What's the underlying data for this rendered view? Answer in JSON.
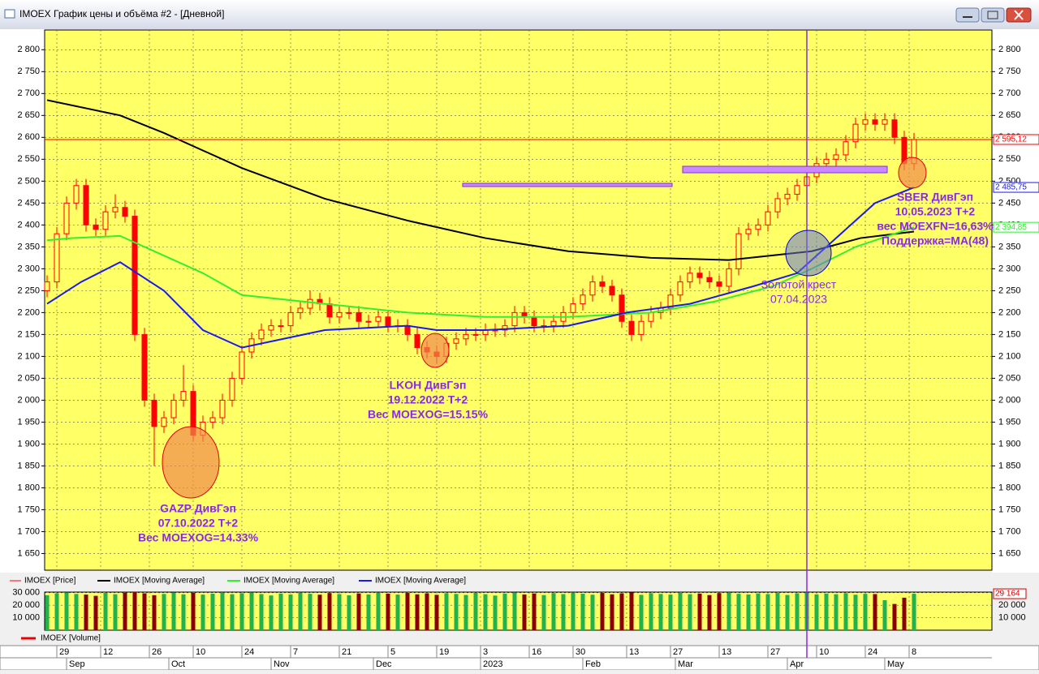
{
  "window": {
    "title": "IMOEX График цены и объёма #2 - [Дневной]"
  },
  "chart_data": {
    "type": "candlestick",
    "x": [
      0,
      2,
      4,
      6,
      8,
      10,
      12,
      14,
      16,
      18,
      20,
      22,
      24,
      26,
      28,
      30,
      32,
      34,
      36,
      38,
      40,
      42,
      44,
      46,
      48,
      50,
      52,
      54,
      56,
      58,
      60,
      62,
      64,
      66,
      68,
      70,
      72,
      74,
      76,
      78,
      80,
      82,
      84,
      86,
      88,
      90,
      92,
      94,
      96,
      98,
      100,
      102,
      104,
      106,
      108,
      110,
      112,
      114,
      116,
      118,
      120,
      122,
      124,
      126,
      128,
      130,
      132,
      134,
      136,
      138,
      140,
      142,
      144,
      146,
      148,
      150,
      152,
      154,
      156,
      158,
      160,
      162,
      164,
      166,
      168,
      170,
      172,
      174,
      176,
      178
    ],
    "open": [
      2250,
      2270,
      2380,
      2450,
      2490,
      2400,
      2390,
      2430,
      2440,
      2420,
      2150,
      2000,
      1940,
      1960,
      2000,
      2020,
      1920,
      1950,
      1960,
      2000,
      2050,
      2110,
      2140,
      2160,
      2170,
      2170,
      2200,
      2210,
      2230,
      2220,
      2190,
      2200,
      2200,
      2180,
      2180,
      2190,
      2170,
      2170,
      2150,
      2120,
      2110,
      2100,
      2130,
      2140,
      2150,
      2150,
      2160,
      2160,
      2170,
      2200,
      2190,
      2170,
      2170,
      2180,
      2200,
      2220,
      2240,
      2270,
      2260,
      2240,
      2180,
      2150,
      2180,
      2200,
      2210,
      2240,
      2270,
      2290,
      2280,
      2270,
      2260,
      2300,
      2380,
      2390,
      2400,
      2430,
      2460,
      2470,
      2490,
      2510,
      2540,
      2550,
      2560,
      2590,
      2630,
      2640,
      2630,
      2640,
      2600,
      2540
    ],
    "high": [
      2285,
      2395,
      2465,
      2505,
      2505,
      2415,
      2445,
      2470,
      2455,
      2435,
      2165,
      2015,
      1975,
      2015,
      2080,
      2035,
      1965,
      1975,
      2015,
      2065,
      2125,
      2155,
      2175,
      2185,
      2185,
      2215,
      2225,
      2250,
      2245,
      2235,
      2215,
      2215,
      2215,
      2195,
      2205,
      2205,
      2185,
      2185,
      2165,
      2135,
      2125,
      2145,
      2155,
      2165,
      2165,
      2175,
      2175,
      2185,
      2215,
      2215,
      2205,
      2185,
      2195,
      2215,
      2235,
      2255,
      2285,
      2285,
      2275,
      2255,
      2195,
      2195,
      2215,
      2225,
      2255,
      2285,
      2305,
      2305,
      2295,
      2285,
      2315,
      2395,
      2405,
      2415,
      2445,
      2475,
      2485,
      2505,
      2525,
      2555,
      2565,
      2575,
      2605,
      2645,
      2655,
      2655,
      2655,
      2655,
      2615,
      2610
    ],
    "low": [
      2235,
      2255,
      2365,
      2435,
      2385,
      2375,
      2375,
      2415,
      2405,
      2135,
      1985,
      1850,
      1925,
      1945,
      1985,
      1905,
      1905,
      1935,
      1945,
      1985,
      2035,
      2095,
      2125,
      2145,
      2155,
      2155,
      2185,
      2195,
      2205,
      2175,
      2175,
      2185,
      2165,
      2165,
      2165,
      2155,
      2155,
      2135,
      2105,
      2095,
      2085,
      2085,
      2115,
      2125,
      2135,
      2135,
      2145,
      2145,
      2155,
      2175,
      2155,
      2155,
      2155,
      2165,
      2185,
      2205,
      2225,
      2245,
      2225,
      2165,
      2135,
      2135,
      2165,
      2185,
      2195,
      2225,
      2255,
      2265,
      2255,
      2245,
      2245,
      2285,
      2365,
      2375,
      2385,
      2415,
      2445,
      2455,
      2475,
      2495,
      2525,
      2535,
      2545,
      2575,
      2615,
      2615,
      2615,
      2585,
      2525,
      2525
    ],
    "close": [
      2270,
      2380,
      2450,
      2490,
      2400,
      2390,
      2430,
      2440,
      2420,
      2150,
      2000,
      1940,
      1960,
      2000,
      2020,
      1920,
      1950,
      1960,
      2000,
      2050,
      2110,
      2140,
      2160,
      2170,
      2170,
      2200,
      2210,
      2230,
      2220,
      2190,
      2200,
      2200,
      2180,
      2180,
      2190,
      2170,
      2170,
      2150,
      2120,
      2110,
      2100,
      2130,
      2140,
      2150,
      2150,
      2160,
      2160,
      2170,
      2200,
      2190,
      2170,
      2170,
      2180,
      2200,
      2220,
      2240,
      2270,
      2260,
      2240,
      2180,
      2150,
      2180,
      2200,
      2210,
      2240,
      2270,
      2290,
      2280,
      2270,
      2260,
      2300,
      2380,
      2390,
      2400,
      2430,
      2460,
      2470,
      2490,
      2510,
      2540,
      2550,
      2560,
      2590,
      2630,
      2640,
      2630,
      2640,
      2600,
      2540,
      2595.12
    ],
    "up_color": "#ffff66",
    "down_color": "#ff0000",
    "price_series": {
      "name": "IMOEX [Price]",
      "color": "#ff0000",
      "last_label": "2 595,12"
    },
    "xlim": [
      -0.5,
      194
    ],
    "ylim": [
      1612,
      2845
    ],
    "yticks": [
      {
        "value": 1650,
        "label": "1 650"
      },
      {
        "value": 1700,
        "label": "1 700"
      },
      {
        "value": 1750,
        "label": "1 750"
      },
      {
        "value": 1800,
        "label": "1 800"
      },
      {
        "value": 1850,
        "label": "1 850"
      },
      {
        "value": 1900,
        "label": "1 900"
      },
      {
        "value": 1950,
        "label": "1 950"
      },
      {
        "value": 2000,
        "label": "2 000"
      },
      {
        "value": 2050,
        "label": "2 050"
      },
      {
        "value": 2100,
        "label": "2 100"
      },
      {
        "value": 2150,
        "label": "2 150"
      },
      {
        "value": 2200,
        "label": "2 200"
      },
      {
        "value": 2250,
        "label": "2 250"
      },
      {
        "value": 2300,
        "label": "2 300"
      },
      {
        "value": 2350,
        "label": "2 350"
      },
      {
        "value": 2400,
        "label": "2 400"
      },
      {
        "value": 2450,
        "label": "2 450"
      },
      {
        "value": 2500,
        "label": "2 500"
      },
      {
        "value": 2550,
        "label": "2 550"
      },
      {
        "value": 2600,
        "label": "2 600"
      },
      {
        "value": 2650,
        "label": "2 650"
      },
      {
        "value": 2700,
        "label": "2 700"
      },
      {
        "value": 2750,
        "label": "2 750"
      },
      {
        "value": 2800,
        "label": "2 800"
      }
    ],
    "xticks": [
      {
        "value": 2,
        "label": "29"
      },
      {
        "value": 11,
        "label": "12"
      },
      {
        "value": 21,
        "label": "26"
      },
      {
        "value": 30,
        "label": "10"
      },
      {
        "value": 40,
        "label": "24"
      },
      {
        "value": 50,
        "label": "7"
      },
      {
        "value": 60,
        "label": "21"
      },
      {
        "value": 70,
        "label": "5"
      },
      {
        "value": 80,
        "label": "19"
      },
      {
        "value": 89,
        "label": "3"
      },
      {
        "value": 99,
        "label": "16"
      },
      {
        "value": 108,
        "label": "30"
      },
      {
        "value": 119,
        "label": "13"
      },
      {
        "value": 128,
        "label": "27"
      },
      {
        "value": 138,
        "label": "13"
      },
      {
        "value": 148,
        "label": "27"
      },
      {
        "value": 158,
        "label": "10"
      },
      {
        "value": 168,
        "label": "24"
      },
      {
        "value": 177,
        "label": "8"
      }
    ],
    "months": [
      {
        "value": 4,
        "label": "Sep"
      },
      {
        "value": 25,
        "label": "Oct"
      },
      {
        "value": 46,
        "label": "Nov"
      },
      {
        "value": 67,
        "label": "Dec"
      },
      {
        "value": 89,
        "label": "2023"
      },
      {
        "value": 110,
        "label": "Feb"
      },
      {
        "value": 129,
        "label": "Mar"
      },
      {
        "value": 152,
        "label": "Apr"
      },
      {
        "value": 172,
        "label": "May"
      }
    ],
    "grid": true,
    "cross_line": 156,
    "moving_averages": [
      {
        "name": "IMOEX [Moving Average]",
        "color": "#000000",
        "x": [
          0,
          15,
          24,
          40,
          57,
          74,
          90,
          107,
          124,
          140,
          157,
          167,
          178
        ],
        "values": [
          2685,
          2650,
          2610,
          2530,
          2460,
          2410,
          2370,
          2340,
          2325,
          2320,
          2340,
          2370,
          2385
        ]
      },
      {
        "name": "IMOEX [Moving Average]",
        "color": "#33ee33",
        "x": [
          0,
          5,
          15,
          24,
          32,
          40,
          57,
          74,
          90,
          107,
          124,
          137,
          149,
          157,
          166,
          178
        ],
        "values": [
          2365,
          2370,
          2375,
          2330,
          2290,
          2240,
          2220,
          2200,
          2190,
          2190,
          2200,
          2225,
          2260,
          2300,
          2350,
          2394.85
        ],
        "last_label": "2 394,85"
      },
      {
        "name": "IMOEX [Moving Average]",
        "color": "#1a1aee",
        "x": [
          0,
          7,
          15,
          24,
          32,
          40,
          57,
          74,
          80,
          90,
          107,
          119,
          132,
          145,
          154,
          164,
          170,
          178
        ],
        "values": [
          2220,
          2270,
          2315,
          2250,
          2160,
          2120,
          2160,
          2170,
          2160,
          2160,
          2170,
          2200,
          2220,
          2260,
          2290,
          2390,
          2450,
          2485.75
        ],
        "last_label": "2 485,75"
      }
    ],
    "annotations": [
      {
        "lines": [
          "GAZP ДивГэп",
          "07.10.2022 T+2",
          "Вес MOEXOG=14.33%"
        ]
      },
      {
        "lines": [
          "LKOH ДивГэп",
          "19.12.2022 T+2",
          "Вес MOEXOG=15.15%"
        ]
      },
      {
        "lines": [
          "SBER ДивГэп",
          "10.05.2023 T+2",
          "вес MOEXFN=16,63%",
          "Поддержка=MA(48)"
        ]
      },
      {
        "lines": [
          "Золотой крест",
          "07.04.2023"
        ]
      }
    ],
    "volume": {
      "name": "IMOEX [Volume]",
      "up_color": "#22b14c",
      "down_color": "#8b0000",
      "values": [
        28000,
        29500,
        30200,
        29000,
        28500,
        27500,
        29800,
        28800,
        30000,
        30500,
        29500,
        28000,
        29000,
        30200,
        28700,
        29900,
        28500,
        29200,
        30000,
        28800,
        29500,
        30100,
        28900,
        27800,
        29300,
        28600,
        30000,
        29100,
        28400,
        29700,
        28900,
        27900,
        29400,
        28600,
        30000,
        29200,
        28500,
        29800,
        28700,
        29500,
        28300,
        29600,
        29000,
        28200,
        29900,
        28800,
        27700,
        29300,
        30100,
        28600,
        29400,
        28100,
        29700,
        28900,
        30000,
        29200,
        28400,
        29800,
        28700,
        29500,
        30200,
        28300,
        29600,
        29000,
        28500,
        29900,
        28800,
        29300,
        28100,
        29700,
        30000,
        29100,
        28600,
        29400,
        28900,
        29800,
        28200,
        29500,
        30100,
        28700,
        29300,
        28800,
        29600,
        28400,
        29100,
        28900,
        24000,
        21000,
        26000,
        29164
      ],
      "ylim": [
        0,
        30500
      ],
      "yticks": [
        {
          "value": 10000,
          "label": "10 000"
        },
        {
          "value": 20000,
          "label": "20 000"
        },
        {
          "value": 30000,
          "label": "30 000"
        }
      ],
      "last_label": "29 164"
    }
  }
}
